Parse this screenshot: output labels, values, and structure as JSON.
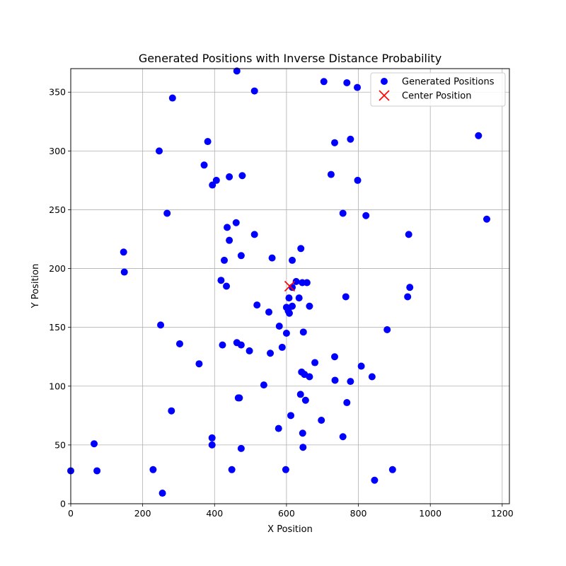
{
  "chart_data": {
    "type": "scatter",
    "title": "Generated Positions with Inverse Distance Probability",
    "xlabel": "X Position",
    "ylabel": "Y Position",
    "xlim": [
      0,
      1220
    ],
    "ylim": [
      0,
      370
    ],
    "xticks": [
      0,
      200,
      400,
      600,
      800,
      1000,
      1200
    ],
    "yticks": [
      0,
      50,
      100,
      150,
      200,
      250,
      300,
      350
    ],
    "grid": true,
    "legend_position": "upper right",
    "series": [
      {
        "name": "Generated Positions",
        "marker": "circle",
        "color": "#0000ff",
        "points": [
          [
            462,
            368
          ],
          [
            704,
            359
          ],
          [
            768,
            358
          ],
          [
            797,
            354
          ],
          [
            511,
            351
          ],
          [
            283,
            345
          ],
          [
            381,
            308
          ],
          [
            734,
            307
          ],
          [
            778,
            310
          ],
          [
            1134,
            313
          ],
          [
            246,
            300
          ],
          [
            371,
            288
          ],
          [
            441,
            278
          ],
          [
            477,
            279
          ],
          [
            405,
            275
          ],
          [
            394,
            271
          ],
          [
            724,
            280
          ],
          [
            798,
            275
          ],
          [
            268,
            247
          ],
          [
            757,
            247
          ],
          [
            821,
            245
          ],
          [
            1157,
            242
          ],
          [
            460,
            239
          ],
          [
            435,
            235
          ],
          [
            511,
            229
          ],
          [
            940,
            229
          ],
          [
            441,
            224
          ],
          [
            640,
            217
          ],
          [
            147,
            214
          ],
          [
            474,
            211
          ],
          [
            560,
            209
          ],
          [
            427,
            207
          ],
          [
            616,
            207
          ],
          [
            149,
            197
          ],
          [
            418,
            190
          ],
          [
            433,
            185
          ],
          [
            627,
            189
          ],
          [
            644,
            188
          ],
          [
            657,
            188
          ],
          [
            616,
            184
          ],
          [
            943,
            184
          ],
          [
            518,
            169
          ],
          [
            551,
            163
          ],
          [
            600,
            167
          ],
          [
            605,
            164
          ],
          [
            608,
            162
          ],
          [
            616,
            168
          ],
          [
            664,
            168
          ],
          [
            607,
            175
          ],
          [
            635,
            175
          ],
          [
            765,
            176
          ],
          [
            937,
            176
          ],
          [
            250,
            152
          ],
          [
            580,
            151
          ],
          [
            600,
            145
          ],
          [
            647,
            146
          ],
          [
            880,
            148
          ],
          [
            303,
            136
          ],
          [
            422,
            135
          ],
          [
            462,
            137
          ],
          [
            474,
            135
          ],
          [
            497,
            130
          ],
          [
            555,
            128
          ],
          [
            588,
            133
          ],
          [
            357,
            119
          ],
          [
            679,
            120
          ],
          [
            734,
            125
          ],
          [
            808,
            117
          ],
          [
            642,
            112
          ],
          [
            650,
            110
          ],
          [
            664,
            108
          ],
          [
            735,
            105
          ],
          [
            778,
            104
          ],
          [
            838,
            108
          ],
          [
            537,
            101
          ],
          [
            639,
            93
          ],
          [
            653,
            88
          ],
          [
            768,
            86
          ],
          [
            466,
            90
          ],
          [
            469,
            90
          ],
          [
            280,
            79
          ],
          [
            612,
            75
          ],
          [
            697,
            71
          ],
          [
            393,
            56
          ],
          [
            578,
            64
          ],
          [
            645,
            60
          ],
          [
            757,
            57
          ],
          [
            65,
            51
          ],
          [
            393,
            50
          ],
          [
            474,
            47
          ],
          [
            646,
            48
          ],
          [
            0,
            28
          ],
          [
            73,
            28
          ],
          [
            229,
            29
          ],
          [
            448,
            29
          ],
          [
            598,
            29
          ],
          [
            895,
            29
          ],
          [
            255,
            9
          ],
          [
            845,
            20
          ]
        ]
      },
      {
        "name": "Center Position",
        "marker": "x",
        "color": "#ff0000",
        "points": [
          [
            609,
            185
          ]
        ]
      }
    ]
  }
}
